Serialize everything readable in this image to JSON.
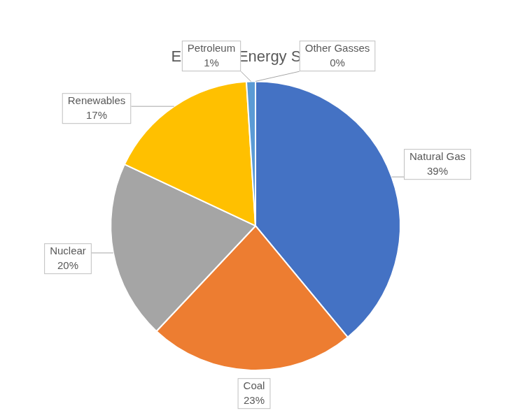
{
  "chart_data": {
    "type": "pie",
    "title": "Electrical Energy Source",
    "categories": [
      "Natural Gas",
      "Coal",
      "Nuclear",
      "Renewables",
      "Petroleum",
      "Other Gasses"
    ],
    "values": [
      39,
      23,
      20,
      17,
      1,
      0
    ],
    "value_labels": [
      "39%",
      "23%",
      "20%",
      "17%",
      "1%",
      "0%"
    ],
    "colors": [
      "#4472c4",
      "#ed7d31",
      "#a5a5a5",
      "#ffc000",
      "#5b9bd5",
      "#70ad47"
    ],
    "data_labels": true
  }
}
